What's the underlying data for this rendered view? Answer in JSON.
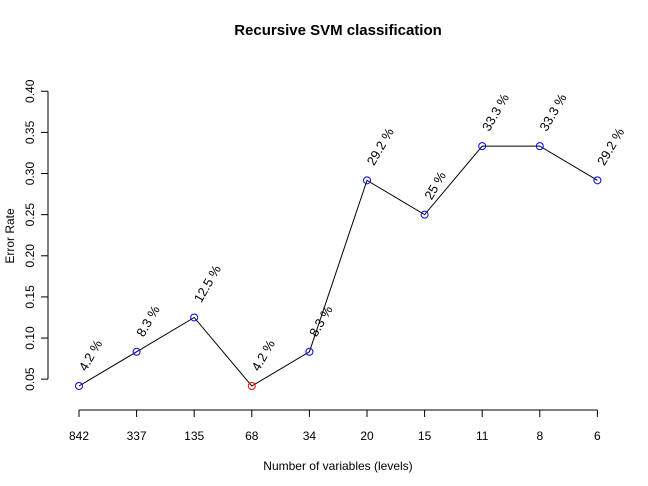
{
  "chart_data": {
    "type": "line",
    "title": "Recursive SVM classification",
    "xlabel": "Number of variables (levels)",
    "ylabel": "Error Rate",
    "categories": [
      "842",
      "337",
      "135",
      "68",
      "34",
      "20",
      "15",
      "11",
      "8",
      "6"
    ],
    "values": [
      0.0417,
      0.0833,
      0.125,
      0.0417,
      0.0833,
      0.2917,
      0.25,
      0.3333,
      0.3333,
      0.2917
    ],
    "data_labels": [
      "4.2 %",
      "8.3 %",
      "12.5 %",
      "4.2 %",
      "8.3 %",
      "29.2 %",
      "25 %",
      "33.3 %",
      "33.3 %",
      "29.2 %"
    ],
    "highlight_index": 3,
    "yticks": [
      "0.05",
      "0.10",
      "0.15",
      "0.20",
      "0.25",
      "0.30",
      "0.35",
      "0.40"
    ],
    "ylim": [
      0.04,
      0.4
    ],
    "grid": false,
    "colors": {
      "line": "#000000",
      "point": "#0000ff",
      "highlight_point": "#ff0000"
    }
  }
}
